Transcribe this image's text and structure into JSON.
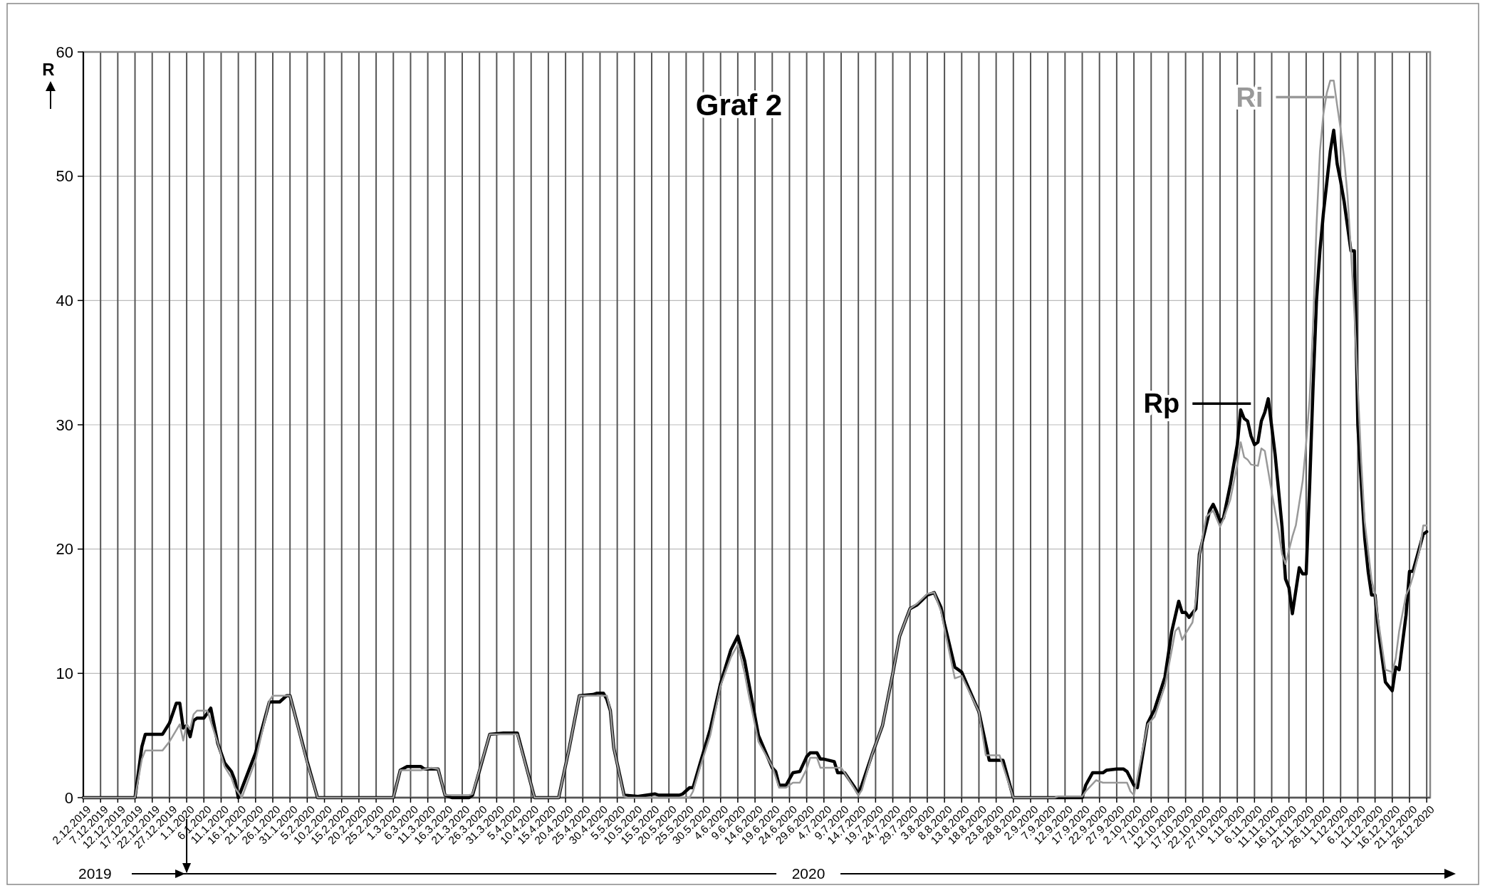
{
  "chart_data": {
    "type": "line",
    "title": "Graf 2",
    "ylabel": "R",
    "annotations": [
      "2019",
      "2020"
    ],
    "xlim": [
      "2019-12-02",
      "2020-12-27"
    ],
    "xticks": [
      {
        "value": "2019-12-02",
        "label": "2.12.2019"
      },
      {
        "value": "2019-12-07",
        "label": "7.12.2019"
      },
      {
        "value": "2019-12-12",
        "label": "12.12.2019"
      },
      {
        "value": "2019-12-17",
        "label": "17.12.2019"
      },
      {
        "value": "2019-12-22",
        "label": "22.12.2019"
      },
      {
        "value": "2019-12-27",
        "label": "27.12.2019"
      },
      {
        "value": "2020-01-01",
        "label": "1.1.2020"
      },
      {
        "value": "2020-01-06",
        "label": "6.1.2020"
      },
      {
        "value": "2020-01-11",
        "label": "11.1.2020"
      },
      {
        "value": "2020-01-16",
        "label": "16.1.2020"
      },
      {
        "value": "2020-01-21",
        "label": "21.1.2020"
      },
      {
        "value": "2020-01-26",
        "label": "26.1.2020"
      },
      {
        "value": "2020-01-31",
        "label": "31.1.2020"
      },
      {
        "value": "2020-02-05",
        "label": "5.2.2020"
      },
      {
        "value": "2020-02-10",
        "label": "10.2.2020"
      },
      {
        "value": "2020-02-15",
        "label": "15.2.2020"
      },
      {
        "value": "2020-02-20",
        "label": "20.2.2020"
      },
      {
        "value": "2020-02-25",
        "label": "25.2.2020"
      },
      {
        "value": "2020-03-01",
        "label": "1.3.2020"
      },
      {
        "value": "2020-03-06",
        "label": "6.3.2020"
      },
      {
        "value": "2020-03-11",
        "label": "11.3.2020"
      },
      {
        "value": "2020-03-16",
        "label": "16.3.2020"
      },
      {
        "value": "2020-03-21",
        "label": "21.3.2020"
      },
      {
        "value": "2020-03-26",
        "label": "26.3.2020"
      },
      {
        "value": "2020-03-31",
        "label": "31.3.2020"
      },
      {
        "value": "2020-04-05",
        "label": "5.4.2020"
      },
      {
        "value": "2020-04-10",
        "label": "10.4.2020"
      },
      {
        "value": "2020-04-15",
        "label": "15.4.2020"
      },
      {
        "value": "2020-04-20",
        "label": "20.4.2020"
      },
      {
        "value": "2020-04-25",
        "label": "25.4.2020"
      },
      {
        "value": "2020-04-30",
        "label": "30.4.2020"
      },
      {
        "value": "2020-05-05",
        "label": "5.5.2020"
      },
      {
        "value": "2020-05-10",
        "label": "10.5.2020"
      },
      {
        "value": "2020-05-15",
        "label": "15.5.2020"
      },
      {
        "value": "2020-05-20",
        "label": "20.5.2020"
      },
      {
        "value": "2020-05-25",
        "label": "25.5.2020"
      },
      {
        "value": "2020-05-30",
        "label": "30.5.2020"
      },
      {
        "value": "2020-06-04",
        "label": "4.6.2020"
      },
      {
        "value": "2020-06-09",
        "label": "9.6.2020"
      },
      {
        "value": "2020-06-14",
        "label": "14.6.2020"
      },
      {
        "value": "2020-06-19",
        "label": "19.6.2020"
      },
      {
        "value": "2020-06-24",
        "label": "24.6.2020"
      },
      {
        "value": "2020-06-29",
        "label": "29.6.2020"
      },
      {
        "value": "2020-07-04",
        "label": "4.7.2020"
      },
      {
        "value": "2020-07-09",
        "label": "9.7.2020"
      },
      {
        "value": "2020-07-14",
        "label": "14.7.2020"
      },
      {
        "value": "2020-07-19",
        "label": "19.7.2020"
      },
      {
        "value": "2020-07-24",
        "label": "24.7.2020"
      },
      {
        "value": "2020-07-29",
        "label": "29.7.2020"
      },
      {
        "value": "2020-08-03",
        "label": "3.8.2020"
      },
      {
        "value": "2020-08-08",
        "label": "8.8.2020"
      },
      {
        "value": "2020-08-13",
        "label": "13.8.2020"
      },
      {
        "value": "2020-08-18",
        "label": "18.8.2020"
      },
      {
        "value": "2020-08-23",
        "label": "23.8.2020"
      },
      {
        "value": "2020-08-28",
        "label": "28.8.2020"
      },
      {
        "value": "2020-09-02",
        "label": "2.9.2020"
      },
      {
        "value": "2020-09-07",
        "label": "7.9.2020"
      },
      {
        "value": "2020-09-12",
        "label": "12.9.2020"
      },
      {
        "value": "2020-09-17",
        "label": "17.9.2020"
      },
      {
        "value": "2020-09-22",
        "label": "22.9.2020"
      },
      {
        "value": "2020-09-27",
        "label": "27.9.2020"
      },
      {
        "value": "2020-10-02",
        "label": "2.10.2020"
      },
      {
        "value": "2020-10-07",
        "label": "7.10.2020"
      },
      {
        "value": "2020-10-12",
        "label": "12.10.2020"
      },
      {
        "value": "2020-10-17",
        "label": "17.10.2020"
      },
      {
        "value": "2020-10-22",
        "label": "22.10.2020"
      },
      {
        "value": "2020-10-27",
        "label": "27.10.2020"
      },
      {
        "value": "2020-11-01",
        "label": "1.11.2020"
      },
      {
        "value": "2020-11-06",
        "label": "6.11.2020"
      },
      {
        "value": "2020-11-11",
        "label": "11.11.2020"
      },
      {
        "value": "2020-11-16",
        "label": "16.11.2020"
      },
      {
        "value": "2020-11-21",
        "label": "21.11.2020"
      },
      {
        "value": "2020-11-26",
        "label": "26.11.2020"
      },
      {
        "value": "2020-12-01",
        "label": "1.12.2020"
      },
      {
        "value": "2020-12-06",
        "label": "6.12.2020"
      },
      {
        "value": "2020-12-11",
        "label": "11.12.2020"
      },
      {
        "value": "2020-12-16",
        "label": "16.12.2020"
      },
      {
        "value": "2020-12-21",
        "label": "21.12.2020"
      },
      {
        "value": "2020-12-26",
        "label": "26.12.2020"
      }
    ],
    "ylim": [
      0,
      60
    ],
    "yticks": [
      0,
      10,
      20,
      30,
      40,
      50,
      60
    ],
    "grid": true,
    "legend": "top right",
    "series": [
      {
        "name": "Rp",
        "color": "#000000",
        "x": [
          "2019-12-02",
          "2019-12-17",
          "2019-12-19",
          "2019-12-20",
          "2019-12-25",
          "2019-12-27",
          "2019-12-29",
          "2019-12-30",
          "2019-12-31",
          "2020-01-01",
          "2020-01-02",
          "2020-01-03",
          "2020-01-04",
          "2020-01-06",
          "2020-01-08",
          "2020-01-10",
          "2020-01-12",
          "2020-01-14",
          "2020-01-15",
          "2020-01-16",
          "2020-01-21",
          "2020-01-25",
          "2020-01-28",
          "2020-01-30",
          "2020-01-31",
          "2020-02-05",
          "2020-02-08",
          "2020-03-01",
          "2020-03-03",
          "2020-03-05",
          "2020-03-09",
          "2020-03-10",
          "2020-03-14",
          "2020-03-16",
          "2020-03-18",
          "2020-03-23",
          "2020-03-24",
          "2020-03-29",
          "2020-04-02",
          "2020-04-06",
          "2020-04-11",
          "2020-04-18",
          "2020-04-21",
          "2020-04-24",
          "2020-04-28",
          "2020-04-29",
          "2020-05-01",
          "2020-05-02",
          "2020-05-03",
          "2020-05-04",
          "2020-05-07",
          "2020-05-11",
          "2020-05-16",
          "2020-05-17",
          "2020-05-23",
          "2020-05-24",
          "2020-05-26",
          "2020-05-27",
          "2020-05-29",
          "2020-06-01",
          "2020-06-04",
          "2020-06-07",
          "2020-06-09",
          "2020-06-11",
          "2020-06-12",
          "2020-06-15",
          "2020-06-19",
          "2020-06-20",
          "2020-06-21",
          "2020-06-23",
          "2020-06-25",
          "2020-06-27",
          "2020-06-29",
          "2020-06-30",
          "2020-07-02",
          "2020-07-03",
          "2020-07-04",
          "2020-07-07",
          "2020-07-08",
          "2020-07-10",
          "2020-07-13",
          "2020-07-14",
          "2020-07-15",
          "2020-07-18",
          "2020-07-21",
          "2020-07-24",
          "2020-07-26",
          "2020-07-29",
          "2020-07-31",
          "2020-08-03",
          "2020-08-05",
          "2020-08-07",
          "2020-08-08",
          "2020-08-11",
          "2020-08-13",
          "2020-08-18",
          "2020-08-21",
          "2020-08-25",
          "2020-08-28",
          "2020-09-17",
          "2020-09-18",
          "2020-09-20",
          "2020-09-23",
          "2020-09-24",
          "2020-09-27",
          "2020-09-29",
          "2020-09-30",
          "2020-10-02",
          "2020-10-03",
          "2020-10-06",
          "2020-10-08",
          "2020-10-11",
          "2020-10-13",
          "2020-10-15",
          "2020-10-16",
          "2020-10-17",
          "2020-10-18",
          "2020-10-20",
          "2020-10-21",
          "2020-10-24",
          "2020-10-25",
          "2020-10-26",
          "2020-10-27",
          "2020-10-28",
          "2020-10-30",
          "2020-11-01",
          "2020-11-02",
          "2020-11-03",
          "2020-11-04",
          "2020-11-05",
          "2020-11-06",
          "2020-11-07",
          "2020-11-08",
          "2020-11-09",
          "2020-11-10",
          "2020-11-12",
          "2020-11-14",
          "2020-11-15",
          "2020-11-16",
          "2020-11-17",
          "2020-11-19",
          "2020-11-20",
          "2020-11-21",
          "2020-11-22",
          "2020-11-23",
          "2020-11-24",
          "2020-11-25",
          "2020-11-26",
          "2020-11-27",
          "2020-11-28",
          "2020-11-29",
          "2020-11-30",
          "2020-12-01",
          "2020-12-02",
          "2020-12-03",
          "2020-12-04",
          "2020-12-05",
          "2020-12-06",
          "2020-12-07",
          "2020-12-08",
          "2020-12-09",
          "2020-12-10",
          "2020-12-11",
          "2020-12-12",
          "2020-12-14",
          "2020-12-16",
          "2020-12-17",
          "2020-12-18",
          "2020-12-20",
          "2020-12-21",
          "2020-12-22",
          "2020-12-24",
          "2020-12-25",
          "2020-12-26"
        ],
        "values": [
          0,
          0,
          4.1,
          5.1,
          5.1,
          6.0,
          7.6,
          7.6,
          5.6,
          5.8,
          4.9,
          6.2,
          6.4,
          6.4,
          7.2,
          4.4,
          2.8,
          2.1,
          1.4,
          0,
          3.6,
          7.7,
          7.7,
          8.2,
          8.2,
          2.9,
          0,
          0,
          2.2,
          2.5,
          2.5,
          2.3,
          2.3,
          0.2,
          0,
          0,
          0.2,
          5.1,
          5.2,
          5.2,
          0,
          0,
          3.9,
          8.2,
          8.3,
          8.4,
          8.4,
          7.9,
          7.0,
          4.0,
          0.2,
          0.1,
          0.3,
          0.2,
          0.2,
          0.3,
          0.8,
          0.8,
          2.7,
          5.5,
          9.2,
          11.9,
          13.0,
          11.0,
          9.5,
          5.0,
          2.4,
          2.1,
          1.0,
          1.0,
          2.0,
          2.1,
          3.3,
          3.6,
          3.6,
          3.1,
          3.1,
          2.9,
          2.0,
          2.0,
          0.8,
          0.3,
          1.0,
          3.5,
          5.8,
          10.0,
          13.0,
          15.2,
          15.5,
          16.3,
          16.5,
          15.3,
          14.0,
          10.5,
          10.1,
          6.9,
          3.0,
          3.0,
          0,
          0,
          1.0,
          2.0,
          2.0,
          2.2,
          2.3,
          2.3,
          2.1,
          1.0,
          0.8,
          6.0,
          7.1,
          9.7,
          13.4,
          15.8,
          14.9,
          14.9,
          14.5,
          15.2,
          19.6,
          23.1,
          23.6,
          23.0,
          22.2,
          22.5,
          25.2,
          28.4,
          31.2,
          30.5,
          30.3,
          29.1,
          28.4,
          28.6,
          30.3,
          31.0,
          32.1,
          27.6,
          21.8,
          17.6,
          16.9,
          14.8,
          18.5,
          18.0,
          18.0,
          25.0,
          33.0,
          40.0,
          44.0,
          47.0,
          49.5,
          52.0,
          53.7,
          51.0,
          49.6,
          48.0,
          46.0,
          44.0,
          44.0,
          30.0,
          25.3,
          20.9,
          18.2,
          16.3,
          16.3,
          13.4,
          9.3,
          8.6,
          10.5,
          10.3,
          14.7,
          18.2,
          18.2,
          20.2,
          21.2,
          21.4
        ]
      },
      {
        "name": "Ri",
        "color": "#999999",
        "x": [
          "2019-12-02",
          "2019-12-17",
          "2019-12-19",
          "2019-12-20",
          "2019-12-25",
          "2019-12-27",
          "2019-12-30",
          "2019-12-31",
          "2020-01-01",
          "2020-01-02",
          "2020-01-03",
          "2020-01-04",
          "2020-01-07",
          "2020-01-10",
          "2020-01-12",
          "2020-01-14",
          "2020-01-15",
          "2020-01-17",
          "2020-01-21",
          "2020-01-25",
          "2020-01-26",
          "2020-01-31",
          "2020-02-05",
          "2020-02-08",
          "2020-03-01",
          "2020-03-03",
          "2020-03-09",
          "2020-03-12",
          "2020-03-14",
          "2020-03-16",
          "2020-03-23",
          "2020-03-24",
          "2020-03-29",
          "2020-04-06",
          "2020-04-11",
          "2020-04-18",
          "2020-04-21",
          "2020-04-24",
          "2020-05-02",
          "2020-05-03",
          "2020-05-04",
          "2020-05-07",
          "2020-05-08",
          "2020-05-26",
          "2020-05-27",
          "2020-05-29",
          "2020-06-01",
          "2020-06-04",
          "2020-06-07",
          "2020-06-09",
          "2020-06-11",
          "2020-06-12",
          "2020-06-15",
          "2020-06-19",
          "2020-06-21",
          "2020-06-23",
          "2020-06-25",
          "2020-06-27",
          "2020-06-29",
          "2020-06-30",
          "2020-07-02",
          "2020-07-03",
          "2020-07-09",
          "2020-07-10",
          "2020-07-14",
          "2020-07-15",
          "2020-07-18",
          "2020-07-21",
          "2020-07-24",
          "2020-07-26",
          "2020-07-29",
          "2020-07-31",
          "2020-08-03",
          "2020-08-05",
          "2020-08-07",
          "2020-08-08",
          "2020-08-11",
          "2020-08-13",
          "2020-08-18",
          "2020-08-20",
          "2020-08-24",
          "2020-08-28",
          "2020-09-09",
          "2020-09-10",
          "2020-09-17",
          "2020-09-18",
          "2020-09-21",
          "2020-09-23",
          "2020-09-30",
          "2020-10-01",
          "2020-10-02",
          "2020-10-06",
          "2020-10-08",
          "2020-10-11",
          "2020-10-13",
          "2020-10-14",
          "2020-10-15",
          "2020-10-16",
          "2020-10-17",
          "2020-10-19",
          "2020-10-20",
          "2020-10-21",
          "2020-10-23",
          "2020-10-25",
          "2020-10-27",
          "2020-10-28",
          "2020-10-30",
          "2020-11-01",
          "2020-11-02",
          "2020-11-03",
          "2020-11-04",
          "2020-11-05",
          "2020-11-07",
          "2020-11-08",
          "2020-11-09",
          "2020-11-11",
          "2020-11-13",
          "2020-11-14",
          "2020-11-15",
          "2020-11-17",
          "2020-11-18",
          "2020-11-20",
          "2020-11-21",
          "2020-11-22",
          "2020-11-23",
          "2020-11-24",
          "2020-11-25",
          "2020-11-26",
          "2020-11-27",
          "2020-11-28",
          "2020-11-29",
          "2020-11-30",
          "2020-12-01",
          "2020-12-02",
          "2020-12-03",
          "2020-12-04",
          "2020-12-05",
          "2020-12-06",
          "2020-12-07",
          "2020-12-08",
          "2020-12-10",
          "2020-12-11",
          "2020-12-12",
          "2020-12-14",
          "2020-12-16",
          "2020-12-17",
          "2020-12-18",
          "2020-12-20",
          "2020-12-21",
          "2020-12-22",
          "2020-12-24",
          "2020-12-25",
          "2020-12-26"
        ],
        "values": [
          0,
          0,
          3.1,
          3.8,
          3.8,
          4.5,
          5.9,
          4.6,
          5.9,
          5.5,
          6.7,
          7.0,
          7.0,
          4.4,
          2.5,
          1.6,
          0.8,
          0,
          3.0,
          7.8,
          8.2,
          8.2,
          2.8,
          0,
          0,
          2.2,
          2.2,
          2.4,
          2.3,
          0.2,
          0.2,
          0.3,
          5.1,
          5.1,
          0,
          0,
          3.9,
          8.2,
          8.2,
          7.0,
          4.0,
          0.1,
          0,
          0,
          0.5,
          2.4,
          5.0,
          9.0,
          11.3,
          12.3,
          10.0,
          8.5,
          4.5,
          2.5,
          0.8,
          0.8,
          1.2,
          1.2,
          2.3,
          3.2,
          3.2,
          2.4,
          2.4,
          2.0,
          0.2,
          0.6,
          3.5,
          5.8,
          10.0,
          13.0,
          15.2,
          15.6,
          16.4,
          16.5,
          15.0,
          13.6,
          9.6,
          9.8,
          6.9,
          3.4,
          3.4,
          0,
          0,
          0.1,
          0.1,
          0.5,
          1.4,
          1.2,
          1.2,
          0.5,
          0.2,
          5.9,
          6.5,
          9.0,
          11.9,
          13.4,
          13.7,
          12.7,
          13.2,
          14.1,
          15.9,
          19.5,
          22.6,
          23.1,
          21.8,
          22.4,
          24.0,
          26.8,
          28.6,
          27.4,
          27.2,
          26.8,
          26.7,
          28.1,
          27.9,
          24.6,
          21.5,
          19.6,
          18.8,
          21.0,
          21.9,
          25.5,
          28.5,
          32,
          38,
          46,
          52,
          55,
          56.7,
          57.7,
          57.7,
          55.7,
          53.8,
          51.5,
          48.5,
          44,
          39,
          33,
          27,
          22.2,
          17.5,
          16.3,
          14.1,
          10.3,
          10.1,
          11.2,
          13.4,
          16.3,
          16.9,
          17.8,
          20.0,
          21.9,
          21.9
        ]
      }
    ]
  }
}
